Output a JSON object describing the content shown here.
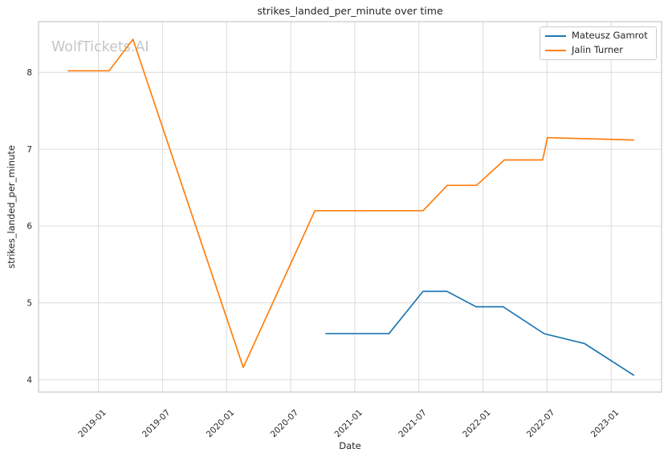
{
  "watermark": "WolfTickets.AI",
  "colors": {
    "background": "#ffffff",
    "grid": "#dcdcdc",
    "spine": "#c9c9c9",
    "text": "#262626",
    "watermark": "#c5c5c5",
    "series_blue": "#1f77b4",
    "series_orange": "#ff7f0e"
  },
  "chart_data": {
    "type": "line",
    "title": "strikes_landed_per_minute over time",
    "xlabel": "Date",
    "ylabel": "strikes_landed_per_minute",
    "grid": true,
    "legend_position": "upper right",
    "x_ticks": [
      "2019-01",
      "2019-07",
      "2020-01",
      "2020-07",
      "2021-01",
      "2021-07",
      "2022-01",
      "2022-07",
      "2023-01"
    ],
    "y_ticks": [
      4,
      5,
      6,
      7,
      8
    ],
    "xlim": [
      "2018-07-13",
      "2023-05-23"
    ],
    "ylim": [
      3.84,
      8.66
    ],
    "series": [
      {
        "name": "Mateusz Gamrot",
        "color": "#1f77b4",
        "points": [
          [
            "2020-10-10",
            4.6
          ],
          [
            "2021-04-07",
            4.6
          ],
          [
            "2021-07-13",
            5.15
          ],
          [
            "2021-09-20",
            5.15
          ],
          [
            "2021-12-12",
            4.95
          ],
          [
            "2022-02-28",
            4.95
          ],
          [
            "2022-06-23",
            4.6
          ],
          [
            "2022-10-17",
            4.47
          ],
          [
            "2023-03-04",
            4.06
          ]
        ]
      },
      {
        "name": "Jalin Turner",
        "color": "#ff7f0e",
        "points": [
          [
            "2018-10-06",
            8.02
          ],
          [
            "2019-02-01",
            8.02
          ],
          [
            "2019-04-08",
            8.43
          ],
          [
            "2020-02-18",
            4.16
          ],
          [
            "2020-09-09",
            6.2
          ],
          [
            "2021-07-13",
            6.2
          ],
          [
            "2021-09-21",
            6.53
          ],
          [
            "2021-12-13",
            6.53
          ],
          [
            "2022-03-01",
            6.86
          ],
          [
            "2022-06-19",
            6.86
          ],
          [
            "2022-07-02",
            7.15
          ],
          [
            "2023-03-04",
            7.12
          ]
        ]
      }
    ]
  }
}
